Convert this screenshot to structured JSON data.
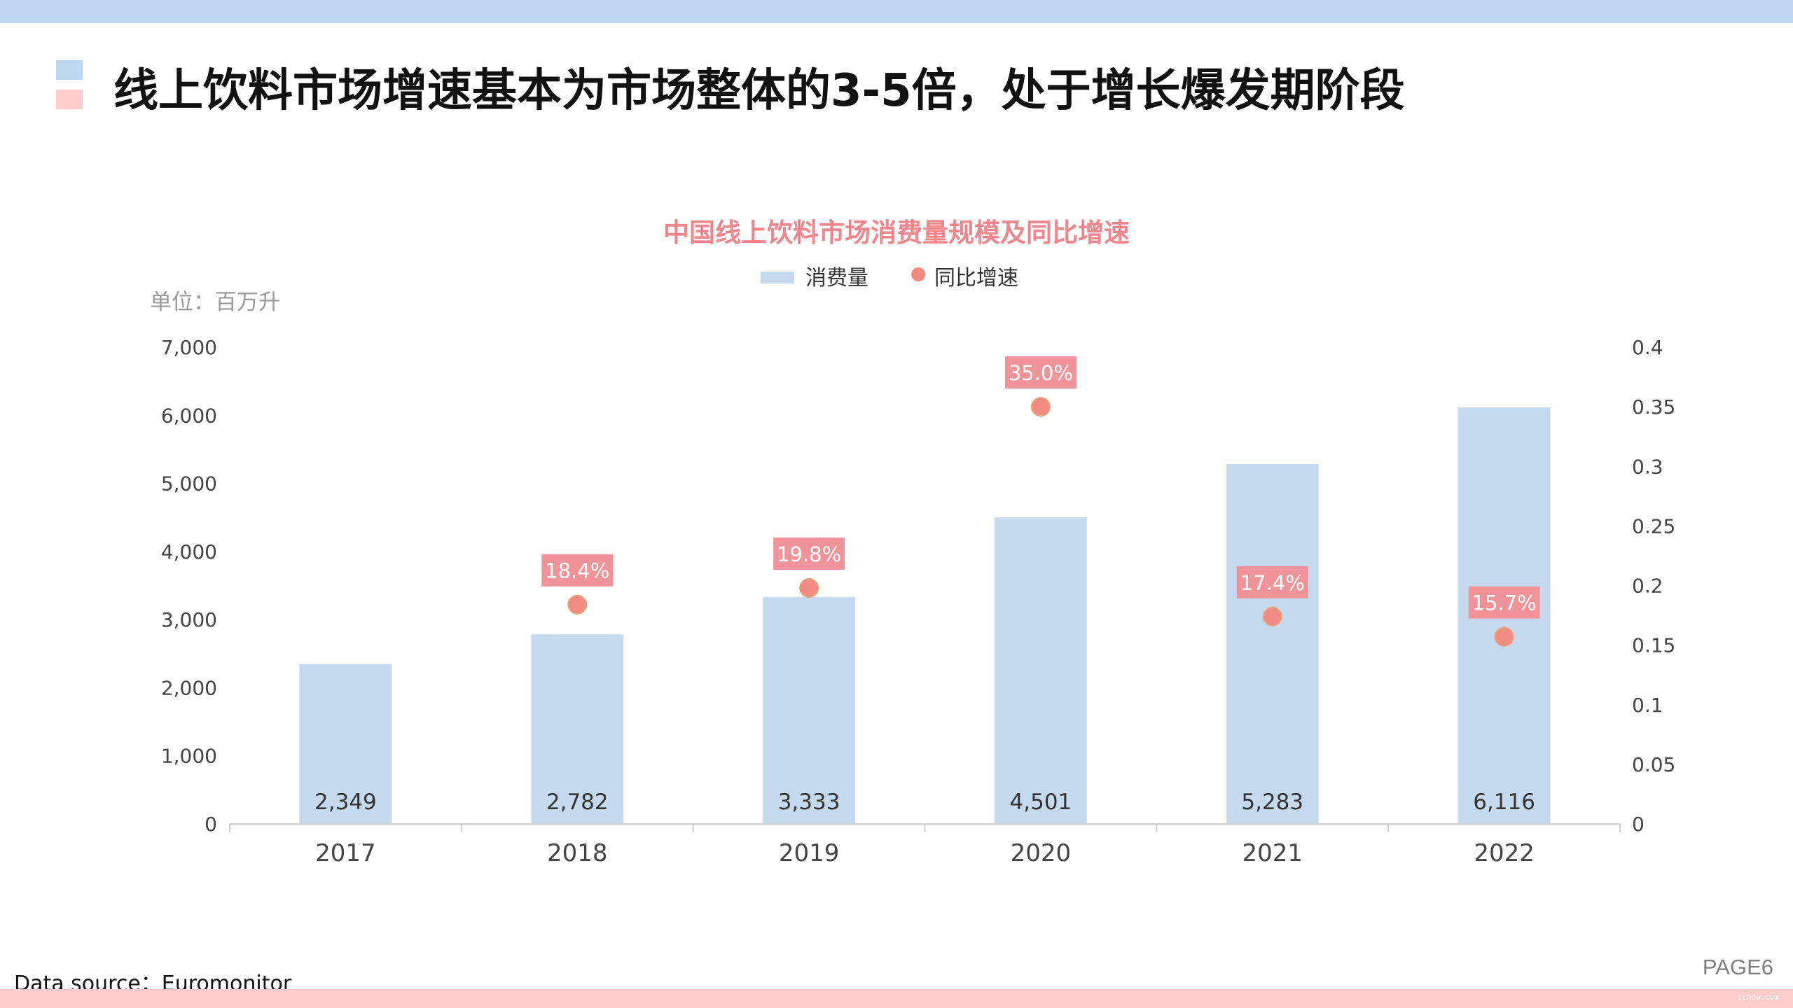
{
  "slide": {
    "headline": "线上饮料市场增速基本为市场整体的3-5倍，处于增长爆发期阶段",
    "unit": "单位：百万升",
    "source": "Data source：Euromonitor",
    "page": "PAGE6",
    "watermark": "zcndw.com"
  },
  "colors": {
    "band_top": "#bdd7ee",
    "band_bottom": "#ffcbcb",
    "bar": "#c5daee",
    "dot": "#f28b82",
    "label_bg": "#f0949a",
    "title": "#f0868c"
  },
  "chart_data": {
    "type": "bar",
    "title": "中国线上饮料市场消费量规模及同比增速",
    "categories": [
      "2017",
      "2018",
      "2019",
      "2020",
      "2021",
      "2022"
    ],
    "series": [
      {
        "name": "消费量",
        "kind": "bar",
        "axis": "left",
        "values": [
          2349,
          2782,
          3333,
          4501,
          5283,
          6116
        ],
        "labels": [
          "2,349",
          "2,782",
          "3,333",
          "4,501",
          "5,283",
          "6,116"
        ]
      },
      {
        "name": "同比增速",
        "kind": "scatter",
        "axis": "right",
        "values": [
          null,
          0.184,
          0.198,
          0.35,
          0.174,
          0.157
        ],
        "labels": [
          "",
          "18.4%",
          "19.8%",
          "35.0%",
          "17.4%",
          "15.7%"
        ]
      }
    ],
    "y_left": {
      "lim": [
        0,
        7000
      ],
      "ticks": [
        0,
        1000,
        2000,
        3000,
        4000,
        5000,
        6000,
        7000
      ],
      "tick_labels": [
        "0",
        "1,000",
        "2,000",
        "3,000",
        "4,000",
        "5,000",
        "6,000",
        "7,000"
      ]
    },
    "y_right": {
      "lim": [
        0,
        0.4
      ],
      "ticks": [
        0,
        0.05,
        0.1,
        0.15,
        0.2,
        0.25,
        0.3,
        0.35,
        0.4
      ],
      "tick_labels": [
        "0",
        "0.05",
        "0.1",
        "0.15",
        "0.2",
        "0.25",
        "0.3",
        "0.35",
        "0.4"
      ]
    },
    "legend": "top-center",
    "grid": false
  }
}
